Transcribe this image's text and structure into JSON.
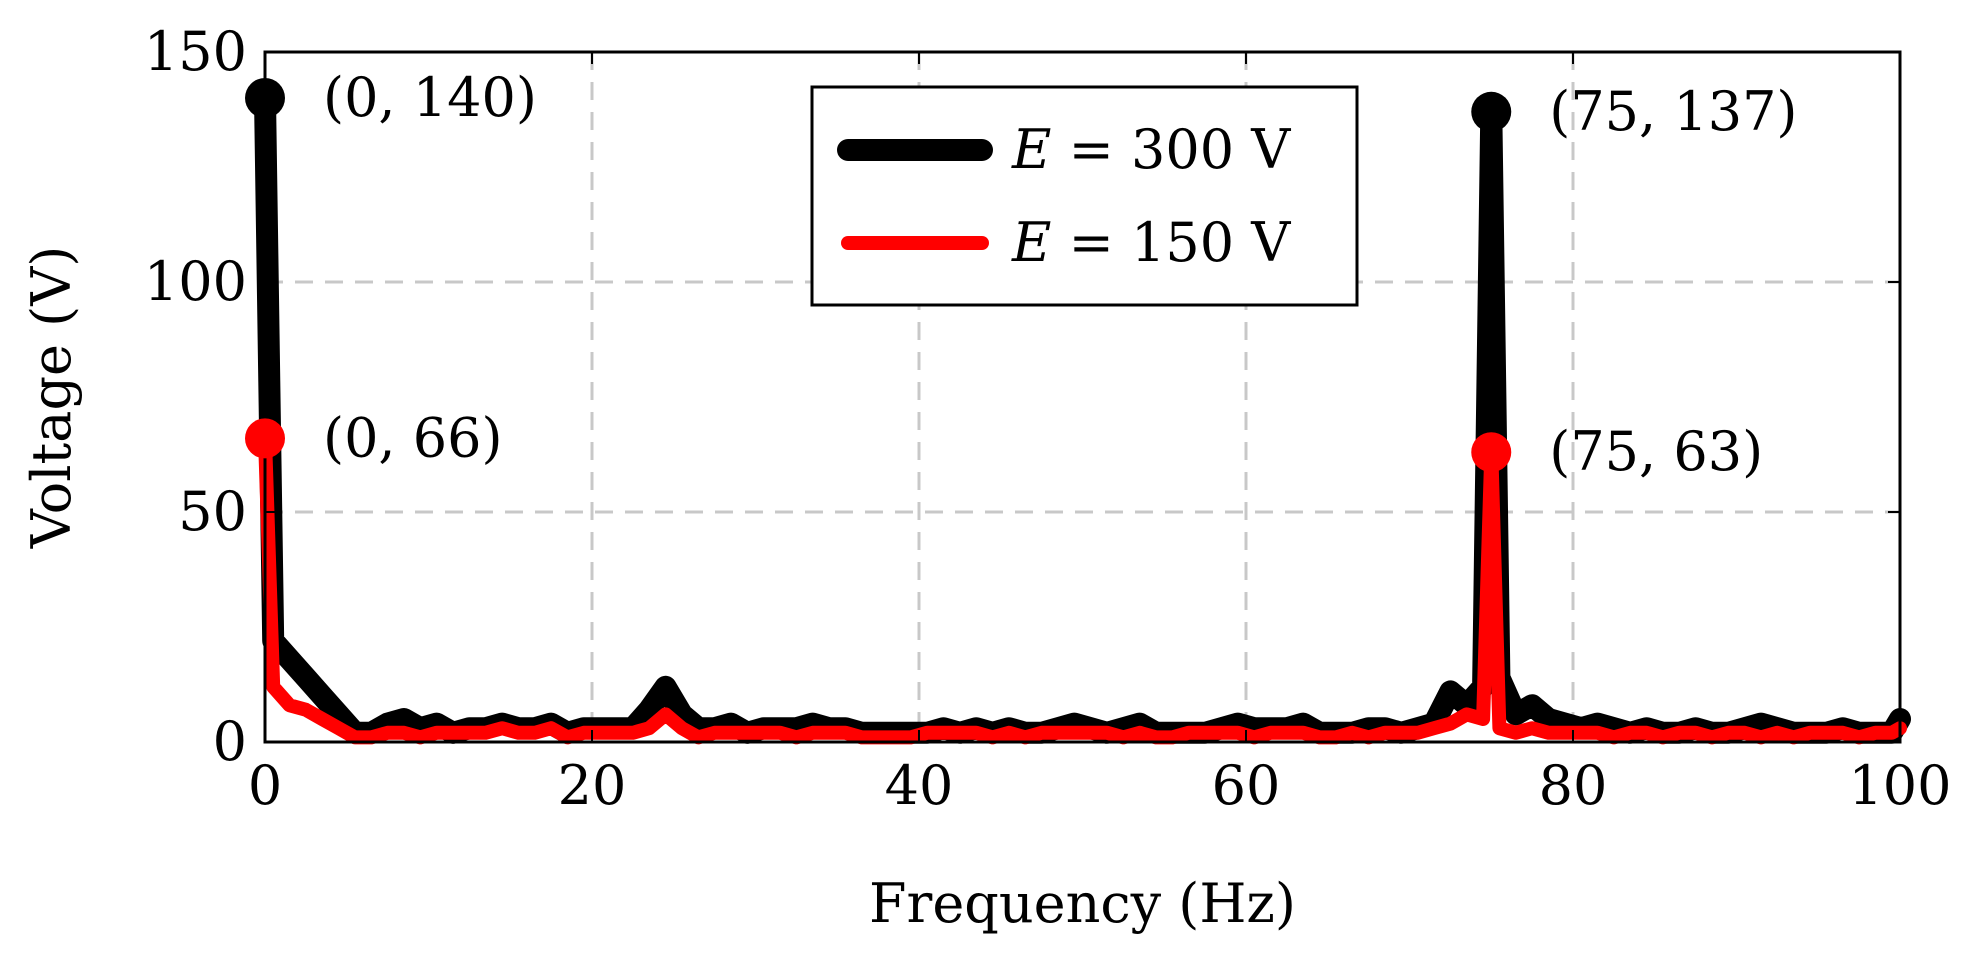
{
  "chart_data": {
    "type": "line",
    "title": "",
    "xlabel": "Frequency (Hz)",
    "ylabel": "Voltage (V)",
    "xlim": [
      0,
      100
    ],
    "ylim": [
      0,
      150
    ],
    "xticks": [
      0,
      20,
      40,
      60,
      80,
      100
    ],
    "yticks": [
      0,
      50,
      100,
      150
    ],
    "xtick_labels": [
      "0",
      "20",
      "40",
      "60",
      "80",
      "100"
    ],
    "ytick_labels": [
      "0",
      "50",
      "100",
      "150"
    ],
    "grid": true,
    "legend_position": "top-center",
    "series": [
      {
        "name": "E = 300 V",
        "legend_var": "E",
        "legend_rest": " = 300 V",
        "color": "#000000",
        "x": [
          0,
          0.5,
          1.5,
          2.5,
          3.5,
          4.5,
          5.5,
          6.5,
          7.5,
          8.5,
          9.5,
          10.5,
          11.5,
          12.5,
          13.5,
          14.5,
          15.5,
          16.5,
          17.5,
          18.5,
          19.5,
          20.5,
          21.5,
          22.5,
          23.5,
          24.5,
          25.5,
          26.5,
          27.5,
          28.5,
          29.5,
          30.5,
          31.5,
          32.5,
          33.5,
          34.5,
          35.5,
          36.5,
          37.5,
          38.5,
          39.5,
          40.5,
          41.5,
          42.5,
          43.5,
          44.5,
          45.5,
          46.5,
          47.5,
          48.5,
          49.5,
          50.5,
          51.5,
          52.5,
          53.5,
          54.5,
          55.5,
          56.5,
          57.5,
          58.5,
          59.5,
          60.5,
          61.5,
          62.5,
          63.5,
          64.5,
          65.5,
          66.5,
          67.5,
          68.5,
          69.5,
          70.5,
          71.5,
          72.5,
          73.5,
          74.5,
          75,
          75.5,
          76.5,
          77.5,
          78.5,
          79.5,
          80.5,
          81.5,
          82.5,
          83.5,
          84.5,
          85.5,
          86.5,
          87.5,
          88.5,
          89.5,
          90.5,
          91.5,
          92.5,
          93.5,
          94.5,
          95.5,
          96.5,
          97.5,
          98.5,
          99.5,
          100
        ],
        "y": [
          140,
          22,
          18,
          14,
          10,
          6,
          2,
          2,
          4,
          5,
          3,
          4,
          2,
          3,
          3,
          4,
          3,
          3,
          4,
          2,
          3,
          3,
          3,
          3,
          7,
          12,
          6,
          3,
          3,
          4,
          2,
          3,
          3,
          3,
          4,
          3,
          3,
          2,
          2,
          2,
          2,
          2,
          3,
          2,
          3,
          2,
          3,
          2,
          2,
          3,
          4,
          3,
          2,
          3,
          4,
          2,
          2,
          2,
          2,
          3,
          4,
          3,
          3,
          3,
          4,
          2,
          2,
          2,
          3,
          3,
          2,
          3,
          4,
          11,
          8,
          12,
          137,
          14,
          6,
          8,
          5,
          4,
          3,
          4,
          3,
          2,
          3,
          2,
          2,
          3,
          2,
          2,
          3,
          4,
          3,
          2,
          2,
          2,
          3,
          2,
          2,
          2,
          5
        ],
        "highlights": [
          {
            "x": 0,
            "y": 140,
            "label": "(0, 140)"
          },
          {
            "x": 75,
            "y": 137,
            "label": "(75, 137)"
          }
        ]
      },
      {
        "name": "E = 150 V",
        "legend_var": "E",
        "legend_rest": " = 150 V",
        "color": "#ff0000",
        "x": [
          0,
          0.5,
          1.5,
          2.5,
          3.5,
          4.5,
          5.5,
          6.5,
          7.5,
          8.5,
          9.5,
          10.5,
          11.5,
          12.5,
          13.5,
          14.5,
          15.5,
          16.5,
          17.5,
          18.5,
          19.5,
          20.5,
          21.5,
          22.5,
          23.5,
          24.5,
          25.5,
          26.5,
          27.5,
          28.5,
          29.5,
          30.5,
          31.5,
          32.5,
          33.5,
          34.5,
          35.5,
          36.5,
          37.5,
          38.5,
          39.5,
          40.5,
          41.5,
          42.5,
          43.5,
          44.5,
          45.5,
          46.5,
          47.5,
          48.5,
          49.5,
          50.5,
          51.5,
          52.5,
          53.5,
          54.5,
          55.5,
          56.5,
          57.5,
          58.5,
          59.5,
          60.5,
          61.5,
          62.5,
          63.5,
          64.5,
          65.5,
          66.5,
          67.5,
          68.5,
          69.5,
          70.5,
          71.5,
          72.5,
          73.5,
          74.5,
          75,
          75.5,
          76.5,
          77.5,
          78.5,
          79.5,
          80.5,
          81.5,
          82.5,
          83.5,
          84.5,
          85.5,
          86.5,
          87.5,
          88.5,
          89.5,
          90.5,
          91.5,
          92.5,
          93.5,
          94.5,
          95.5,
          96.5,
          97.5,
          98.5,
          99.5,
          100
        ],
        "y": [
          66,
          12,
          8,
          7,
          5,
          3,
          1,
          1,
          2,
          2,
          1,
          2,
          2,
          2,
          2,
          3,
          2,
          2,
          3,
          1,
          2,
          2,
          2,
          2,
          3,
          6,
          3,
          1,
          2,
          2,
          2,
          2,
          2,
          1,
          2,
          2,
          2,
          1,
          1,
          1,
          1,
          2,
          2,
          2,
          2,
          1,
          2,
          1,
          2,
          2,
          2,
          2,
          2,
          1,
          2,
          1,
          1,
          2,
          2,
          2,
          2,
          1,
          2,
          2,
          2,
          1,
          1,
          2,
          1,
          2,
          2,
          2,
          3,
          4,
          6,
          5,
          63,
          3,
          2,
          3,
          2,
          2,
          2,
          2,
          1,
          2,
          2,
          1,
          2,
          2,
          1,
          2,
          2,
          1,
          2,
          1,
          2,
          2,
          2,
          1,
          2,
          2,
          3
        ],
        "highlights": [
          {
            "x": 0,
            "y": 66,
            "label": "(0, 66)"
          },
          {
            "x": 75,
            "y": 63,
            "label": "(75, 63)"
          }
        ]
      }
    ]
  }
}
